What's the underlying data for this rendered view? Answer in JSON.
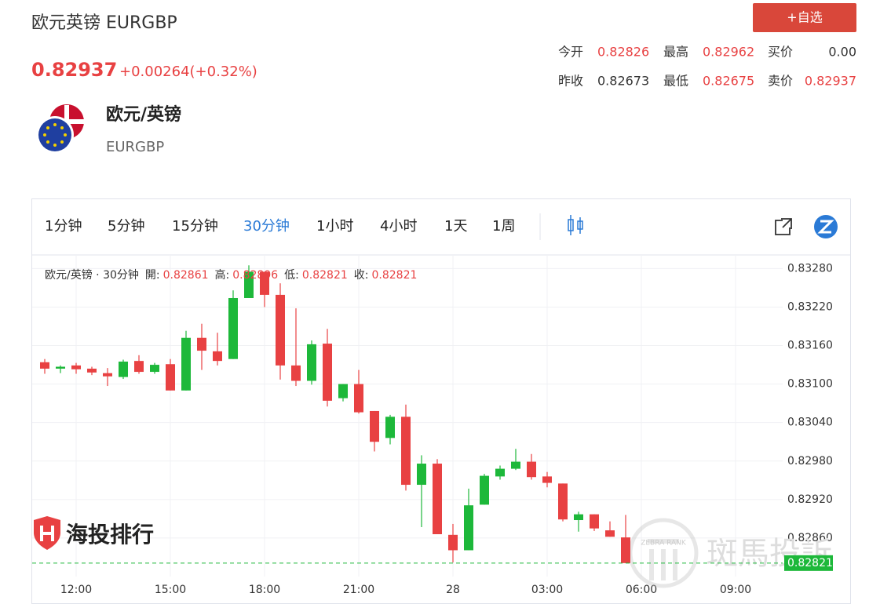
{
  "header": {
    "title": "欧元英镑 EURGBP",
    "price": "0.82937",
    "change": "+0.00264(+0.32%)",
    "button": "+自选",
    "stats": [
      {
        "label": "今开",
        "value": "0.82826",
        "color": "#e84142"
      },
      {
        "label": "最高",
        "value": "0.82962",
        "color": "#e84142"
      },
      {
        "label": "买价",
        "value": "0.00",
        "color": "#333333"
      },
      {
        "label": "昨收",
        "value": "0.82673",
        "color": "#333333"
      },
      {
        "label": "最低",
        "value": "0.82675",
        "color": "#e84142"
      },
      {
        "label": "卖价",
        "value": "0.82937",
        "color": "#e84142"
      }
    ],
    "symbol_name": "欧元/英镑",
    "symbol_code": "EURGBP"
  },
  "toolbar": {
    "intervals": [
      "1分钟",
      "5分钟",
      "15分钟",
      "30分钟",
      "1小时",
      "4小时",
      "1天",
      "1周"
    ],
    "active": 3
  },
  "watermarks": {
    "left": "海投排行",
    "right": "斑馬投訴",
    "badge": "ZEBRA RANK"
  },
  "chart_data": {
    "type": "candlestick",
    "legend": {
      "symbol": "欧元/英镑 · 30分钟",
      "items": [
        {
          "label": "開:",
          "value": 0.82861
        },
        {
          "label": "高:",
          "value": 0.82896
        },
        {
          "label": "低:",
          "value": 0.82821
        },
        {
          "label": "收:",
          "value": 0.82821
        }
      ]
    },
    "categories": [
      null,
      null,
      "12:00",
      null,
      null,
      null,
      null,
      null,
      "15:00",
      null,
      null,
      null,
      null,
      null,
      "18:00",
      null,
      null,
      null,
      null,
      null,
      "21:00",
      null,
      null,
      null,
      null,
      null,
      "28",
      null,
      null,
      null,
      null,
      null,
      "03:00",
      null,
      null,
      null,
      null,
      null,
      "06:00",
      null,
      null,
      null,
      null,
      null,
      "09:00"
    ],
    "open": [
      0.83134,
      0.83124,
      0.83129,
      0.83124,
      0.83117,
      0.83111,
      0.83136,
      0.83119,
      0.83131,
      0.8309,
      0.83172,
      0.83151,
      0.83139,
      0.83234,
      0.83275,
      0.83239,
      0.83129,
      0.83105,
      0.83163,
      0.83078,
      0.831,
      0.83058,
      0.83016,
      0.83049,
      0.82943,
      0.82976,
      0.82865,
      0.82841,
      0.82912,
      0.82956,
      0.82968,
      0.82979,
      0.82956,
      0.82945,
      0.82888,
      0.82897,
      0.82872,
      0.82861,
      null,
      null,
      null,
      null,
      null,
      null,
      null
    ],
    "high": [
      0.83139,
      0.83129,
      0.83133,
      0.83127,
      0.83125,
      0.83138,
      0.83145,
      0.83133,
      0.83139,
      0.83183,
      0.83194,
      0.8318,
      0.83246,
      0.83285,
      0.83275,
      0.83257,
      0.83218,
      0.83168,
      0.83186,
      0.831,
      0.83122,
      0.83058,
      0.83052,
      0.83068,
      0.82989,
      0.82983,
      0.82882,
      0.82937,
      0.8296,
      0.82973,
      0.82999,
      0.82991,
      0.82963,
      0.82945,
      0.82901,
      0.82897,
      0.82886,
      0.82896,
      null,
      null,
      null,
      null,
      null,
      null,
      null
    ],
    "low": [
      0.83116,
      0.83117,
      0.83116,
      0.83114,
      0.83097,
      0.83108,
      0.83116,
      0.83116,
      0.8309,
      0.8309,
      0.83122,
      0.83129,
      0.83139,
      0.83234,
      0.8322,
      0.83107,
      0.83097,
      0.83099,
      0.83065,
      0.83073,
      0.83054,
      0.82995,
      0.83006,
      0.82934,
      0.82877,
      0.82866,
      0.82822,
      0.82841,
      0.82912,
      0.82951,
      0.82966,
      0.82951,
      0.82939,
      0.82886,
      0.8287,
      0.82871,
      0.82862,
      0.82821,
      null,
      null,
      null,
      null,
      null,
      null,
      null
    ],
    "close": [
      0.83124,
      0.83127,
      0.83123,
      0.83118,
      0.83112,
      0.83135,
      0.83119,
      0.8313,
      0.8309,
      0.83172,
      0.83152,
      0.83136,
      0.83234,
      0.83275,
      0.83239,
      0.83129,
      0.83105,
      0.83162,
      0.83074,
      0.831,
      0.83056,
      0.8301,
      0.83049,
      0.82943,
      0.82976,
      0.82866,
      0.82841,
      0.82911,
      0.82957,
      0.82968,
      0.82979,
      0.82955,
      0.82946,
      0.82889,
      0.82897,
      0.82875,
      0.82862,
      0.82821,
      null,
      null,
      null,
      null,
      null,
      null,
      null
    ],
    "up_color": "#1db83a",
    "down_color": "#e84142",
    "ylim": [
      0.828,
      0.833
    ],
    "yticks": [
      {
        "value": 0.8286,
        "label": "0.82860"
      },
      {
        "value": 0.8292,
        "label": "0.82920"
      },
      {
        "value": 0.8298,
        "label": "0.82980"
      },
      {
        "value": 0.8304,
        "label": "0.83040"
      },
      {
        "value": 0.831,
        "label": "0.83100"
      },
      {
        "value": 0.8316,
        "label": "0.83160"
      },
      {
        "value": 0.8322,
        "label": "0.83220"
      },
      {
        "value": 0.8328,
        "label": "0.83280"
      }
    ],
    "last_price": 0.82821,
    "last_price_color": "#1db83a",
    "grid": true
  }
}
